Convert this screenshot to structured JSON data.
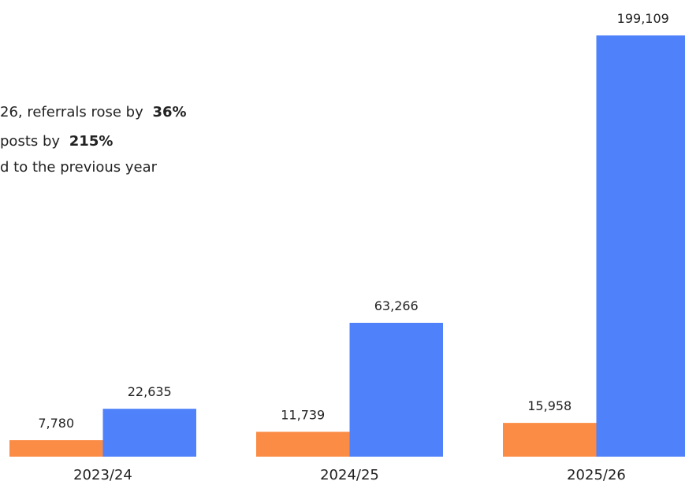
{
  "chart_data": {
    "type": "bar",
    "annotation": {
      "lines": [
        [
          {
            "text": "26, referrals rose by "
          },
          {
            "text": "36%",
            "bold": true
          }
        ],
        [
          {
            "text": "posts by "
          },
          {
            "text": "215%",
            "bold": true
          }
        ],
        [
          {
            "text": "d to the previous year"
          }
        ]
      ]
    },
    "categories": [
      "2023/24",
      "2024/25",
      "2025/26"
    ],
    "series": [
      {
        "color": "#fb8c45",
        "values": [
          7780,
          11739,
          15958
        ],
        "value_labels": [
          "7,780",
          "11,739",
          "15,958"
        ]
      },
      {
        "color": "#4f81fb",
        "values": [
          22635,
          63266,
          199109
        ],
        "value_labels": [
          "22,635",
          "63,266",
          "199,109"
        ]
      }
    ]
  }
}
